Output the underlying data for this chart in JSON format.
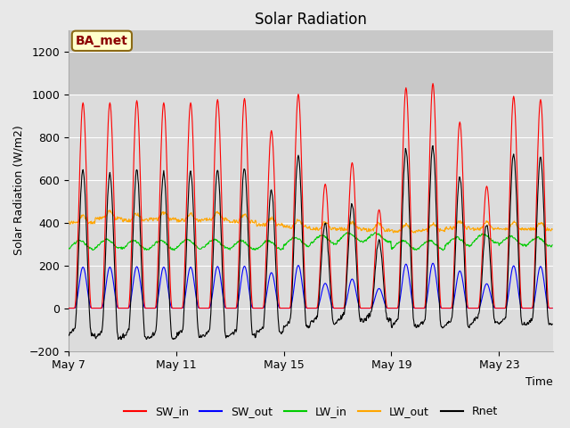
{
  "title": "Solar Radiation",
  "ylabel": "Solar Radiation (W/m2)",
  "xlabel": "Time",
  "ylim": [
    -200,
    1300
  ],
  "yticks": [
    -200,
    0,
    200,
    400,
    600,
    800,
    1000,
    1200
  ],
  "xtick_labels": [
    "May 7",
    "May 11",
    "May 15",
    "May 19",
    "May 23"
  ],
  "figure_bg": "#e8e8e8",
  "plot_bg": "#dcdcdc",
  "upper_band_bg": "#c8c8c8",
  "upper_band_min": 1000,
  "upper_band_max": 1300,
  "colors": {
    "SW_in": "#ff0000",
    "SW_out": "#0000ff",
    "LW_in": "#00cc00",
    "LW_out": "#ffa500",
    "Rnet": "#000000"
  },
  "annotation_text": "BA_met",
  "annotation_bg": "#ffffcc",
  "annotation_border": "#8B6914",
  "n_days": 18,
  "dt_hours": 0.5,
  "figsize": [
    6.4,
    4.8
  ],
  "dpi": 100
}
